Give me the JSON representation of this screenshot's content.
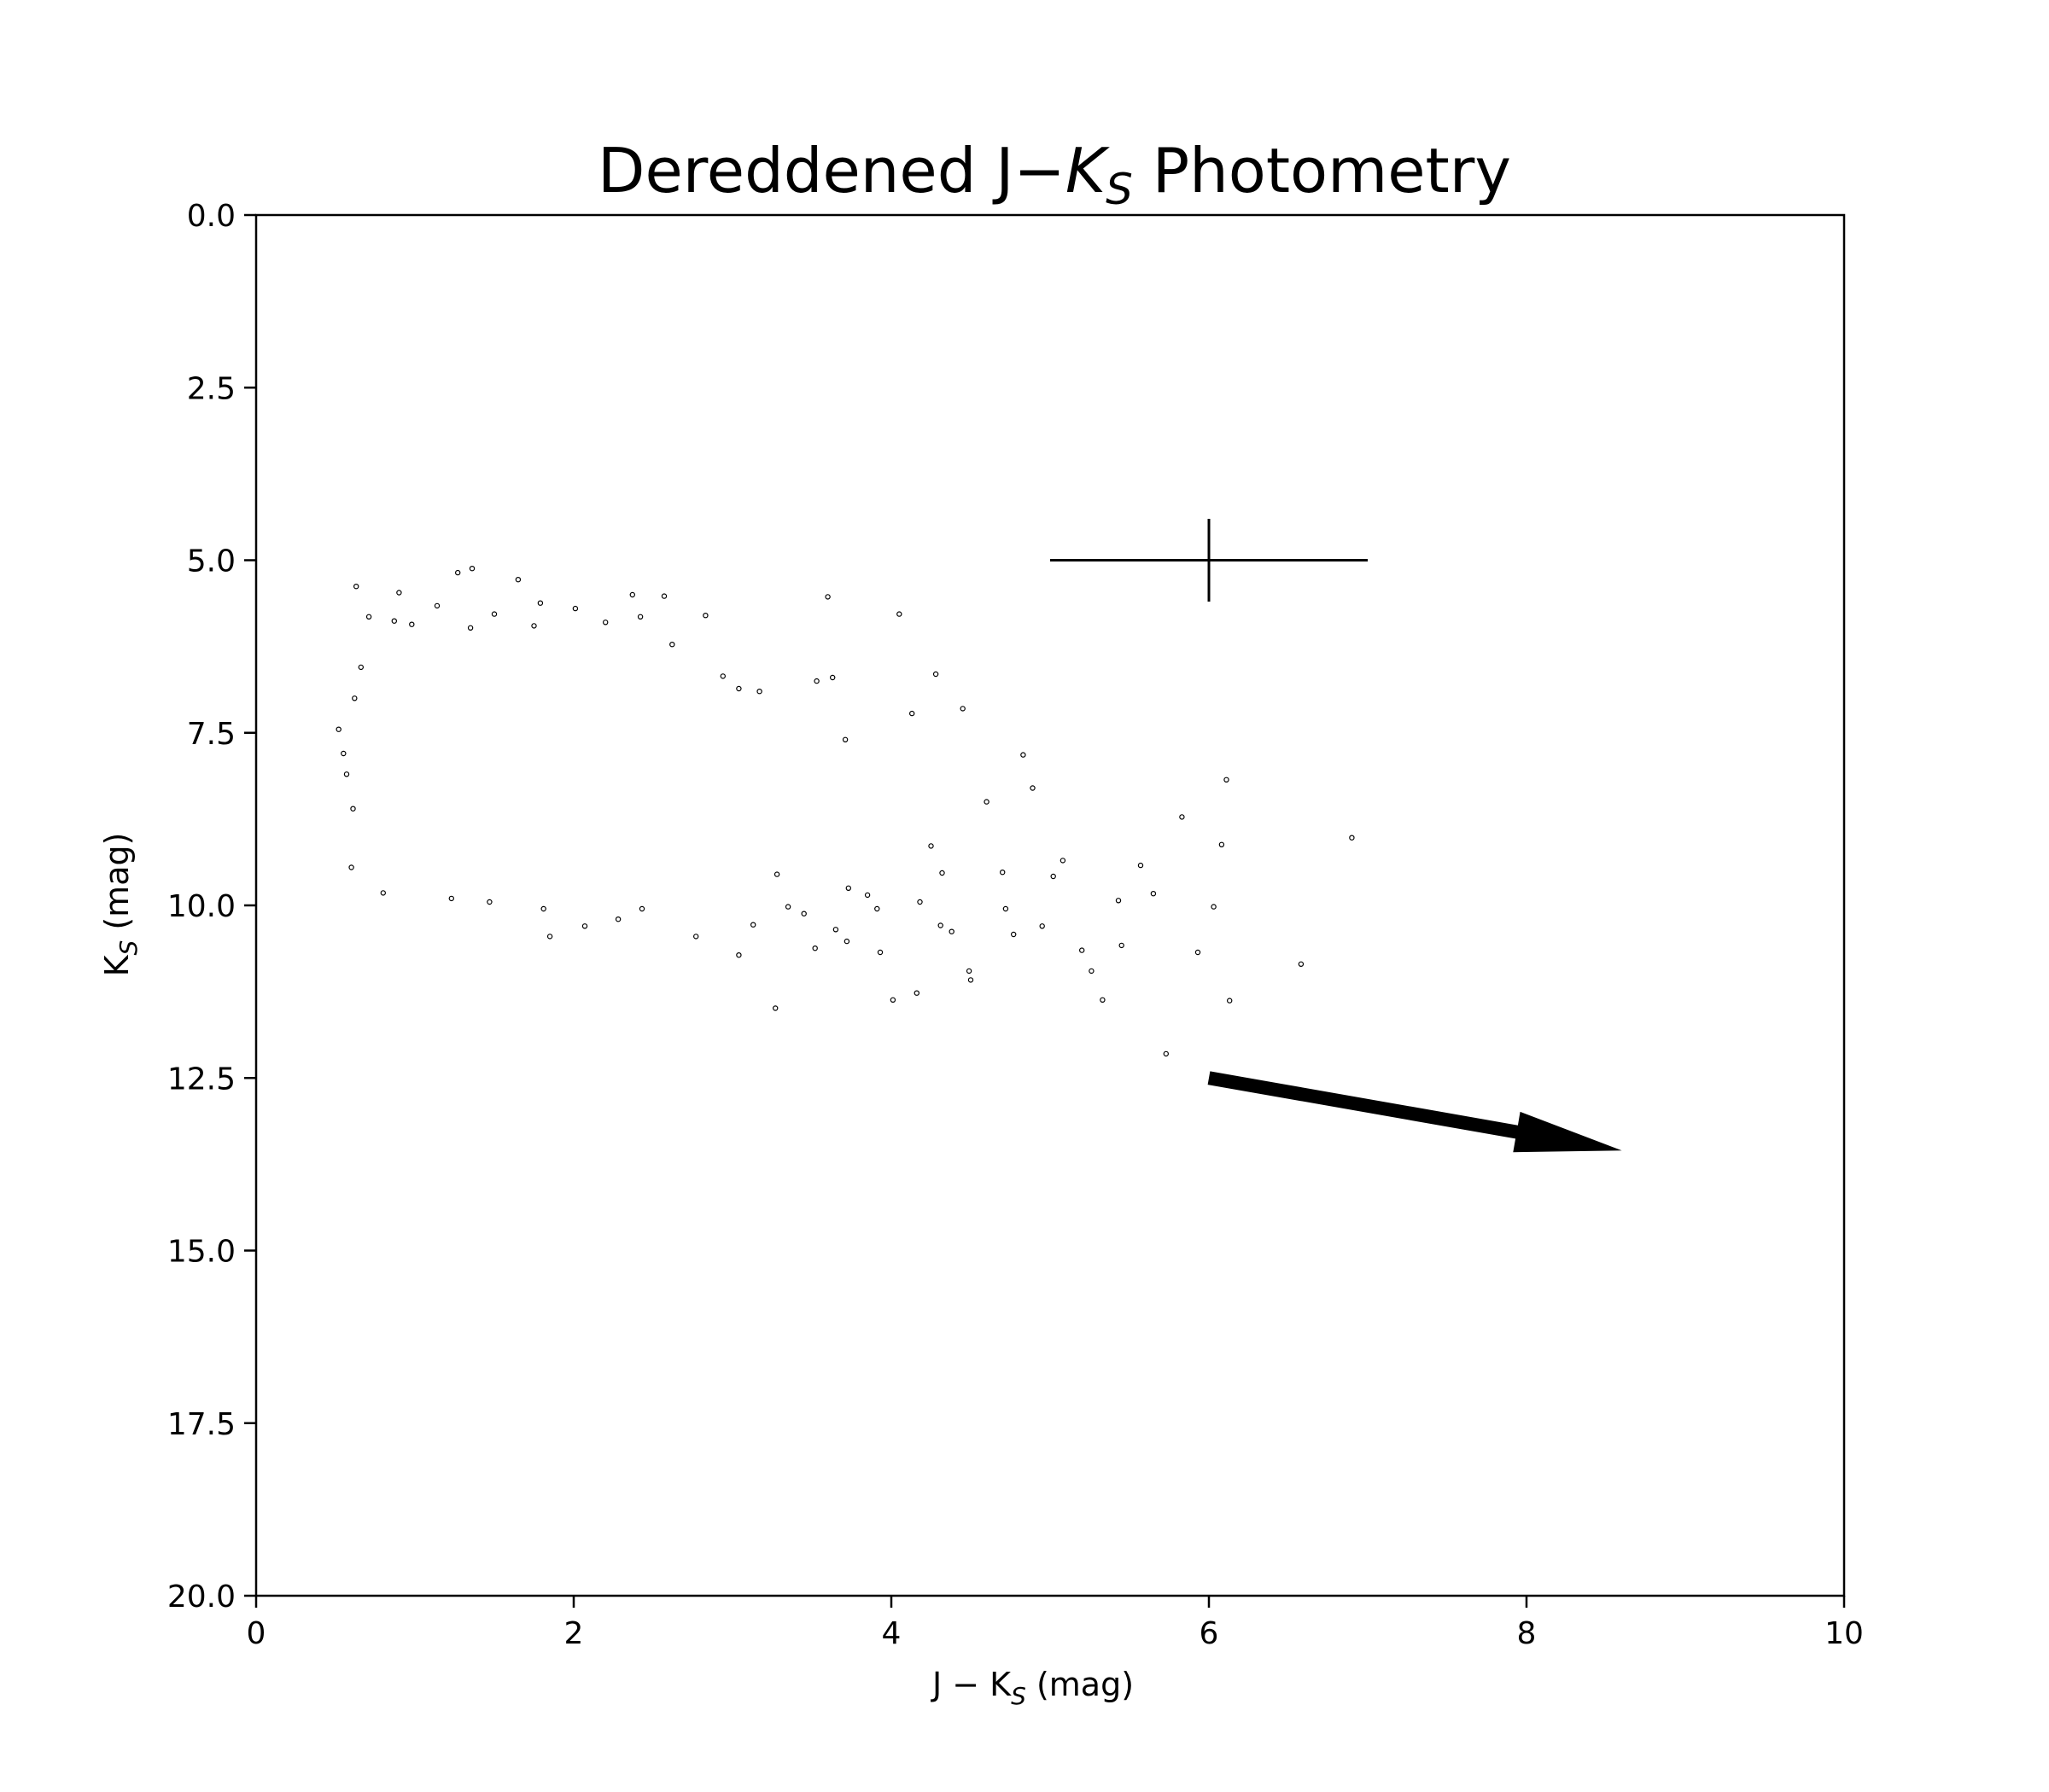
{
  "chart_data": {
    "type": "scatter",
    "title": {
      "main": "Dereddened J−",
      "k": "K",
      "sub": "S",
      "rest": " Photometry"
    },
    "xlabel": {
      "pre": "J − K",
      "sub": "S",
      "post": " (mag)"
    },
    "ylabel": {
      "pre": "K",
      "sub": "S",
      "post": " (mag)"
    },
    "xlim": [
      0,
      10
    ],
    "ylim": [
      20,
      0
    ],
    "y_inverted": true,
    "grid": false,
    "xticks": [
      0,
      2,
      4,
      6,
      8,
      10
    ],
    "xtick_labels": [
      "0",
      "2",
      "4",
      "6",
      "8",
      "10"
    ],
    "yticks": [
      0,
      2.5,
      5,
      7.5,
      10,
      12.5,
      15,
      17.5,
      20
    ],
    "ytick_labels": [
      "0.0",
      "2.5",
      "5.0",
      "7.5",
      "10.0",
      "12.5",
      "15.0",
      "17.5",
      "20.0"
    ],
    "error_bar": {
      "x": 6.0,
      "y": 5.0,
      "xerr": 1.0,
      "yerr": 0.6
    },
    "reddening_arrow": {
      "x_start": 6.0,
      "y_start": 12.5,
      "x_end": 8.6,
      "y_end": 13.55
    },
    "marker_color": "#000000",
    "series": [
      {
        "points": [
          [
            0.63,
            5.38
          ],
          [
            0.9,
            5.47
          ],
          [
            1.36,
            5.12
          ],
          [
            1.65,
            5.28
          ],
          [
            1.27,
            5.18
          ],
          [
            2.37,
            5.5
          ],
          [
            3.6,
            5.53
          ],
          [
            2.57,
            5.52
          ],
          [
            4.05,
            5.78
          ],
          [
            0.71,
            5.82
          ],
          [
            0.98,
            5.93
          ],
          [
            1.14,
            5.66
          ],
          [
            1.5,
            5.78
          ],
          [
            1.79,
            5.62
          ],
          [
            2.01,
            5.7
          ],
          [
            2.2,
            5.9
          ],
          [
            2.42,
            5.82
          ],
          [
            2.83,
            5.8
          ],
          [
            1.35,
            5.98
          ],
          [
            0.87,
            5.88
          ],
          [
            1.75,
            5.95
          ],
          [
            2.62,
            6.22
          ],
          [
            0.55,
            7.8
          ],
          [
            0.52,
            7.45
          ],
          [
            0.57,
            8.1
          ],
          [
            0.62,
            7.0
          ],
          [
            0.66,
            6.55
          ],
          [
            0.61,
            8.6
          ],
          [
            0.6,
            9.45
          ],
          [
            0.8,
            9.82
          ],
          [
            1.23,
            9.9
          ],
          [
            1.47,
            9.95
          ],
          [
            1.81,
            10.05
          ],
          [
            1.85,
            10.45
          ],
          [
            2.07,
            10.3
          ],
          [
            2.28,
            10.2
          ],
          [
            2.43,
            10.05
          ],
          [
            2.77,
            10.45
          ],
          [
            3.04,
            10.72
          ],
          [
            3.27,
            11.49
          ],
          [
            3.52,
            10.62
          ],
          [
            3.72,
            10.52
          ],
          [
            3.93,
            10.68
          ],
          [
            4.01,
            11.37
          ],
          [
            4.16,
            11.27
          ],
          [
            4.49,
            10.95
          ],
          [
            4.5,
            11.08
          ],
          [
            4.72,
            10.05
          ],
          [
            4.95,
            10.3
          ],
          [
            5.2,
            10.65
          ],
          [
            5.26,
            10.95
          ],
          [
            5.33,
            11.37
          ],
          [
            5.45,
            10.58
          ],
          [
            5.73,
            12.15
          ],
          [
            5.93,
            10.68
          ],
          [
            6.03,
            10.02
          ],
          [
            6.08,
            9.12
          ],
          [
            6.13,
            11.38
          ],
          [
            6.11,
            8.18
          ],
          [
            5.83,
            8.72
          ],
          [
            6.58,
            10.85
          ],
          [
            6.9,
            9.02
          ],
          [
            5.57,
            9.42
          ],
          [
            5.65,
            9.83
          ],
          [
            5.43,
            9.93
          ],
          [
            5.02,
            9.58
          ],
          [
            4.83,
            7.82
          ],
          [
            4.89,
            8.3
          ],
          [
            4.6,
            8.5
          ],
          [
            4.45,
            7.15
          ],
          [
            4.28,
            6.65
          ],
          [
            4.13,
            7.22
          ],
          [
            3.71,
            7.6
          ],
          [
            3.53,
            6.75
          ],
          [
            3.63,
            6.7
          ],
          [
            3.17,
            6.9
          ],
          [
            3.04,
            6.86
          ],
          [
            2.94,
            6.68
          ],
          [
            3.45,
            10.12
          ],
          [
            3.65,
            10.35
          ],
          [
            4.31,
            10.29
          ],
          [
            4.38,
            10.38
          ],
          [
            4.18,
            9.95
          ],
          [
            4.32,
            9.53
          ],
          [
            4.25,
            9.14
          ],
          [
            4.7,
            9.52
          ],
          [
            4.77,
            10.42
          ],
          [
            5.08,
            9.35
          ],
          [
            3.85,
            9.85
          ],
          [
            3.91,
            10.05
          ],
          [
            3.73,
            9.75
          ],
          [
            3.28,
            9.55
          ],
          [
            3.35,
            10.02
          ],
          [
            3.13,
            10.28
          ]
        ]
      }
    ]
  }
}
